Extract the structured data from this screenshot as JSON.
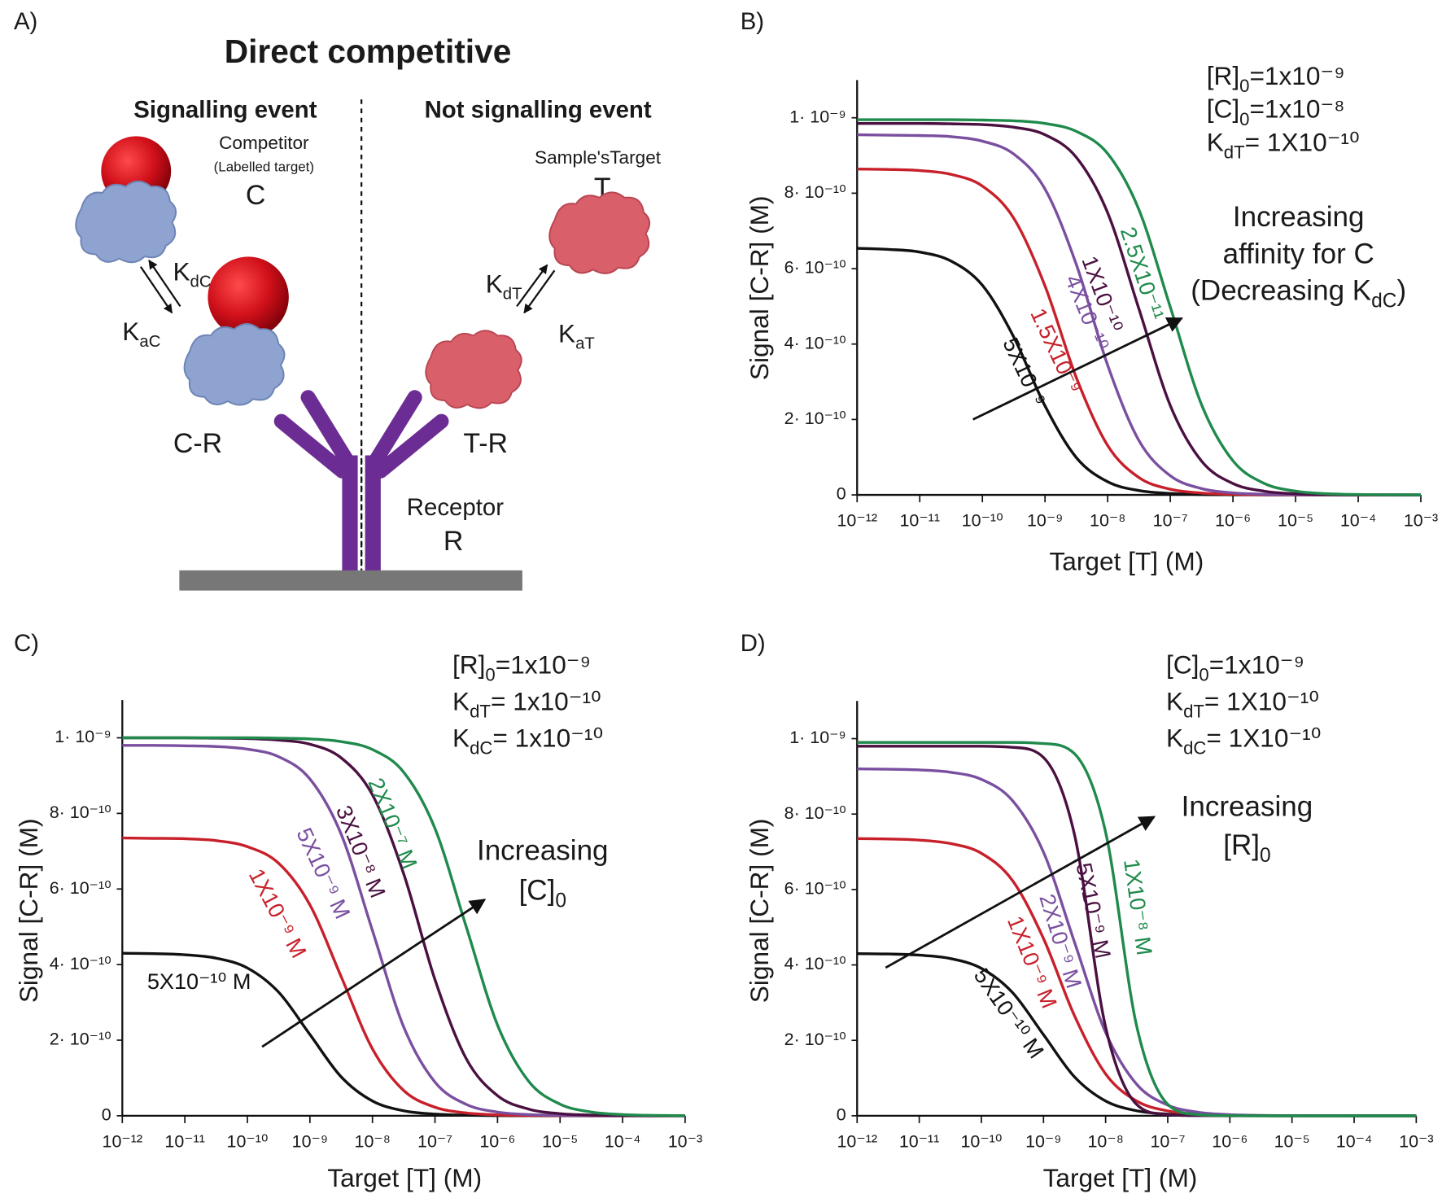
{
  "diagram": {
    "panel": "A)",
    "title": "Direct competitive",
    "left_heading": "Signalling event",
    "right_heading": "Not signalling event",
    "competitor": "Competitor",
    "competitor_note": "(Labelled target)",
    "c": "C",
    "kdc": {
      "main": "K",
      "sub": "dC"
    },
    "kac": {
      "main": "K",
      "sub": "aC"
    },
    "cr": "C-R",
    "target": "Sample'sTarget",
    "t": "T",
    "kdt": {
      "main": "K",
      "sub": "dT"
    },
    "kat": {
      "main": "K",
      "sub": "aT"
    },
    "tr": "T-R",
    "receptor": "Receptor",
    "r": "R"
  },
  "chart_data": [
    {
      "type": "line",
      "panel": "B)",
      "xlabel": "Target [T] (M)",
      "ylabel": "Signal [C-R] (M)",
      "xscale": "log",
      "xlim": [
        1e-12,
        0.001
      ],
      "ylim": [
        0,
        1.1e-09
      ],
      "xticks": [
        {
          "value": 1e-12,
          "label": "10⁻¹²"
        },
        {
          "value": 1e-11,
          "label": "10⁻¹¹"
        },
        {
          "value": 1e-10,
          "label": "10⁻¹⁰"
        },
        {
          "value": 1e-09,
          "label": "10⁻⁹"
        },
        {
          "value": 1e-08,
          "label": "10⁻⁸"
        },
        {
          "value": 1e-07,
          "label": "10⁻⁷"
        },
        {
          "value": 1e-06,
          "label": "10⁻⁶"
        },
        {
          "value": 1e-05,
          "label": "10⁻⁵"
        },
        {
          "value": 0.0001,
          "label": "10⁻⁴"
        },
        {
          "value": 0.001,
          "label": "10⁻³"
        }
      ],
      "yticks": [
        0,
        {
          "value": 2e-10,
          "label": "2· 10⁻¹⁰"
        },
        {
          "value": 4e-10,
          "label": "4· 10⁻¹⁰"
        },
        {
          "value": 6e-10,
          "label": "6· 10⁻¹⁰"
        },
        {
          "value": 8e-10,
          "label": "8· 10⁻¹⁰"
        },
        {
          "value": 1e-09,
          "label": "1· 10⁻⁹"
        }
      ],
      "x": [
        1e-12,
        3.16e-12,
        1e-11,
        3.16e-11,
        1e-10,
        3.16e-10,
        1e-09,
        3.16e-09,
        1e-08,
        3.16e-08,
        1e-07,
        3.16e-07,
        1e-06,
        3.16e-06,
        1e-05,
        3.16e-05,
        0.0001,
        0.000316,
        0.001
      ],
      "series": [
        {
          "name": "5X10⁻⁹",
          "color": "#111111",
          "values": [
            6.54e-10,
            6.51e-10,
            6.44e-10,
            6.2e-10,
            5.56e-10,
            4.19e-10,
            2.36e-10,
            9.89e-11,
            3.48e-11,
            1.15e-11,
            3.7e-12,
            1.2e-12,
            4e-13,
            1e-13,
            0,
            0,
            0,
            0,
            0
          ]
        },
        {
          "name": "1.5X10⁻⁹",
          "color": "#c8202a",
          "values": [
            8.64e-10,
            8.63e-10,
            8.6e-10,
            8.5e-10,
            8.19e-10,
            7.34e-10,
            5.54e-10,
            3.11e-10,
            1.31e-10,
            4.6e-11,
            1.51e-11,
            4.8e-12,
            1.6e-12,
            5e-13,
            2e-13,
            0,
            0,
            0,
            0
          ]
        },
        {
          "name": "4X10⁻¹⁰",
          "color": "#7a4fa0",
          "values": [
            9.55e-10,
            9.54e-10,
            9.53e-10,
            9.5e-10,
            9.38e-10,
            9.04e-10,
            8.11e-10,
            6.11e-10,
            3.44e-10,
            1.44e-10,
            5.08e-11,
            1.67e-11,
            5.3e-12,
            1.7e-12,
            6e-13,
            2e-13,
            0,
            0,
            0
          ]
        },
        {
          "name": "1X10⁻¹⁰",
          "color": "#4a1040",
          "values": [
            9.85e-10,
            9.85e-10,
            9.85e-10,
            9.84e-10,
            9.82e-10,
            9.75e-10,
            9.55e-10,
            8.95e-10,
            7.48e-10,
            4.93e-10,
            2.37e-10,
            8.95e-11,
            3.02e-11,
            9.8e-12,
            3.1e-12,
            1e-12,
            3e-13,
            1e-13,
            0
          ]
        },
        {
          "name": "2.5X10⁻¹¹",
          "color": "#1f8a4c",
          "values": [
            9.95e-10,
            9.95e-10,
            9.95e-10,
            9.95e-10,
            9.94e-10,
            9.92e-10,
            9.85e-10,
            9.64e-10,
            9.05e-10,
            7.56e-10,
            4.98e-10,
            2.39e-10,
            9.05e-11,
            3.05e-11,
            9.9e-12,
            3.1e-12,
            1e-12,
            3e-13,
            1e-13
          ]
        }
      ],
      "params": [
        {
          "main": "[R]",
          "sub": "0",
          "rest": "=1x10⁻⁹"
        },
        {
          "main": "[C]",
          "sub": "0",
          "rest": "=1x10⁻⁸"
        },
        {
          "main": "K",
          "sub": "dT",
          "rest": "= 1X10⁻¹⁰"
        }
      ],
      "annotation": [
        {
          "main": "Increasing"
        },
        {
          "main": "affinity for C"
        },
        {
          "main": "(Decreasing K",
          "sub": "dC",
          "rest": ")"
        }
      ]
    },
    {
      "type": "line",
      "panel": "C)",
      "xlabel": "Target [T] (M)",
      "ylabel": "Signal [C-R] (M)",
      "xscale": "log",
      "xlim": [
        1e-12,
        0.001
      ],
      "ylim": [
        0,
        1.1e-09
      ],
      "xticks": [
        {
          "value": 1e-12,
          "label": "10⁻¹²"
        },
        {
          "value": 1e-11,
          "label": "10⁻¹¹"
        },
        {
          "value": 1e-10,
          "label": "10⁻¹⁰"
        },
        {
          "value": 1e-09,
          "label": "10⁻⁹"
        },
        {
          "value": 1e-08,
          "label": "10⁻⁸"
        },
        {
          "value": 1e-07,
          "label": "10⁻⁷"
        },
        {
          "value": 1e-06,
          "label": "10⁻⁶"
        },
        {
          "value": 1e-05,
          "label": "10⁻⁵"
        },
        {
          "value": 0.0001,
          "label": "10⁻⁴"
        },
        {
          "value": 0.001,
          "label": "10⁻³"
        }
      ],
      "yticks": [
        0,
        {
          "value": 2e-10,
          "label": "2· 10⁻¹⁰"
        },
        {
          "value": 4e-10,
          "label": "4· 10⁻¹⁰"
        },
        {
          "value": 6e-10,
          "label": "6· 10⁻¹⁰"
        },
        {
          "value": 8e-10,
          "label": "8· 10⁻¹⁰"
        },
        {
          "value": 1e-09,
          "label": "1· 10⁻⁹"
        }
      ],
      "x": [
        1e-12,
        3.16e-12,
        1e-11,
        3.16e-11,
        1e-10,
        3.16e-10,
        1e-09,
        3.16e-09,
        1e-08,
        3.16e-08,
        1e-07,
        3.16e-07,
        1e-06,
        3.16e-06,
        1e-05,
        3.16e-05,
        0.0001,
        0.000316,
        0.001
      ],
      "series": [
        {
          "name": "5X10⁻¹⁰ M",
          "color": "#111111",
          "values": [
            4.3e-10,
            4.29e-10,
            4.26e-10,
            4.17e-10,
            3.91e-10,
            3.27e-10,
            2.15e-10,
            1.03e-10,
            3.91e-11,
            1.32e-11,
            4.3e-12,
            1.4e-12,
            4e-13,
            1e-13,
            0,
            0,
            0,
            0,
            0
          ]
        },
        {
          "name": "1X10⁻⁹ M",
          "color": "#c8202a",
          "values": [
            7.35e-10,
            7.34e-10,
            7.33e-10,
            7.28e-10,
            7.12e-10,
            6.68e-10,
            5.58e-10,
            3.68e-10,
            1.77e-10,
            6.68e-11,
            2.26e-11,
            7.3e-12,
            2.3e-12,
            7e-13,
            2e-13,
            0,
            0,
            0,
            0
          ]
        },
        {
          "name": "5X10⁻⁹ M",
          "color": "#7a4fa0",
          "values": [
            9.8e-10,
            9.8e-10,
            9.79e-10,
            9.77e-10,
            9.7e-10,
            9.5e-10,
            8.91e-10,
            7.45e-10,
            4.9e-10,
            2.35e-10,
            8.91e-11,
            3.01e-11,
            9.7e-12,
            3.1e-12,
            1e-12,
            3e-13,
            1e-13,
            0,
            0
          ]
        },
        {
          "name": "3X10⁻⁸ M",
          "color": "#4a1040",
          "values": [
            1e-09,
            1e-09,
            1e-09,
            9.99e-10,
            9.98e-10,
            9.94e-10,
            9.83e-10,
            9.47e-10,
            8.49e-10,
            6.4e-10,
            3.6e-10,
            1.51e-10,
            5.32e-11,
            1.75e-11,
            5.6e-12,
            1.8e-12,
            6e-13,
            2e-13,
            1e-13
          ]
        },
        {
          "name": "2X10⁻⁷ M",
          "color": "#1f8a4c",
          "values": [
            1e-09,
            1e-09,
            1e-09,
            1e-09,
            1e-09,
            9.99e-10,
            9.97e-10,
            9.9e-10,
            9.69e-10,
            9.09e-10,
            7.6e-10,
            5e-10,
            2.4e-10,
            9.09e-11,
            3.07e-11,
            9.9e-12,
            3.2e-12,
            1e-12,
            3e-13
          ]
        }
      ],
      "params": [
        {
          "main": "[R]",
          "sub": "0",
          "rest": "=1x10⁻⁹"
        },
        {
          "main": "K",
          "sub": "dT",
          "rest": "= 1x10⁻¹⁰"
        },
        {
          "main": "K",
          "sub": "dC",
          "rest": "= 1x10⁻¹⁰"
        }
      ],
      "annotation": [
        {
          "main": "Increasing"
        },
        {
          "main": "[C]",
          "sub": "0"
        }
      ]
    },
    {
      "type": "line",
      "panel": "D)",
      "xlabel": "Target [T] (M)",
      "ylabel": "Signal [C-R] (M)",
      "xscale": "log",
      "xlim": [
        1e-12,
        0.001
      ],
      "ylim": [
        0,
        1.1e-09
      ],
      "xticks": [
        {
          "value": 1e-12,
          "label": "10⁻¹²"
        },
        {
          "value": 1e-11,
          "label": "10⁻¹¹"
        },
        {
          "value": 1e-10,
          "label": "10⁻¹⁰"
        },
        {
          "value": 1e-09,
          "label": "10⁻⁹"
        },
        {
          "value": 1e-08,
          "label": "10⁻⁸"
        },
        {
          "value": 1e-07,
          "label": "10⁻⁷"
        },
        {
          "value": 1e-06,
          "label": "10⁻⁶"
        },
        {
          "value": 1e-05,
          "label": "10⁻⁵"
        },
        {
          "value": 0.0001,
          "label": "10⁻⁴"
        },
        {
          "value": 0.001,
          "label": "10⁻³"
        }
      ],
      "yticks": [
        0,
        {
          "value": 2e-10,
          "label": "2· 10⁻¹⁰"
        },
        {
          "value": 4e-10,
          "label": "4· 10⁻¹⁰"
        },
        {
          "value": 6e-10,
          "label": "6· 10⁻¹⁰"
        },
        {
          "value": 8e-10,
          "label": "8· 10⁻¹⁰"
        },
        {
          "value": 1e-09,
          "label": "1· 10⁻⁹"
        }
      ],
      "x": [
        1e-12,
        3.16e-12,
        1e-11,
        3.16e-11,
        1e-10,
        3.16e-10,
        1e-09,
        3.16e-09,
        1e-08,
        3.16e-08,
        1e-07,
        3.16e-07,
        1e-06,
        3.16e-06,
        1e-05,
        3.16e-05,
        0.0001,
        0.000316,
        0.001
      ],
      "series": [
        {
          "name": "5X10⁻¹⁰ M",
          "color": "#111111",
          "values": [
            4.3e-10,
            4.29e-10,
            4.26e-10,
            4.17e-10,
            3.91e-10,
            3.27e-10,
            2.15e-10,
            1.03e-10,
            3.91e-11,
            1.32e-11,
            4.3e-12,
            1.4e-12,
            4e-13,
            1e-13,
            0,
            0,
            0,
            0,
            0
          ]
        },
        {
          "name": "1X10⁻⁹ M",
          "color": "#c8202a",
          "values": [
            7.35e-10,
            7.34e-10,
            7.31e-10,
            7.22e-10,
            6.96e-10,
            6.24e-10,
            4.7e-10,
            2.65e-10,
            1.11e-10,
            3.91e-11,
            1.29e-11,
            4.1e-12,
            1.3e-12,
            4e-13,
            1e-13,
            0,
            0,
            0,
            0
          ]
        },
        {
          "name": "2X10⁻⁹ M",
          "color": "#7a4fa0",
          "values": [
            9.2e-10,
            9.19e-10,
            9.17e-10,
            9.11e-10,
            8.92e-10,
            8.36e-10,
            6.99e-10,
            4.6e-10,
            2.21e-10,
            8.36e-11,
            2.82e-11,
            9.1e-12,
            2.9e-12,
            9e-13,
            3e-13,
            1e-13,
            0,
            0,
            0
          ]
        },
        {
          "name": "5X10⁻⁹ M",
          "color": "#4a1040",
          "values": [
            9.8e-10,
            9.8e-10,
            9.8e-10,
            9.8e-10,
            9.8e-10,
            9.77e-10,
            9.5e-10,
            7.45e-10,
            2.35e-10,
            3.01e-11,
            3.1e-12,
            3e-13,
            0,
            0,
            0,
            0,
            0,
            0,
            0
          ]
        },
        {
          "name": "1X10⁻⁸ M",
          "color": "#1f8a4c",
          "values": [
            9.9e-10,
            9.9e-10,
            9.9e-10,
            9.9e-10,
            9.9e-10,
            9.9e-10,
            9.87e-10,
            9.6e-10,
            7.52e-10,
            2.38e-10,
            3.04e-11,
            3.1e-12,
            3e-13,
            0,
            0,
            0,
            0,
            0,
            0
          ]
        }
      ],
      "params": [
        {
          "main": "[C]",
          "sub": "0",
          "rest": "=1x10⁻⁹"
        },
        {
          "main": "K",
          "sub": "dT",
          "rest": "= 1X10⁻¹⁰"
        },
        {
          "main": "K",
          "sub": "dC",
          "rest": "= 1X10⁻¹⁰"
        }
      ],
      "annotation": [
        {
          "main": "Increasing"
        },
        {
          "main": "[R]",
          "sub": "0"
        }
      ]
    }
  ]
}
